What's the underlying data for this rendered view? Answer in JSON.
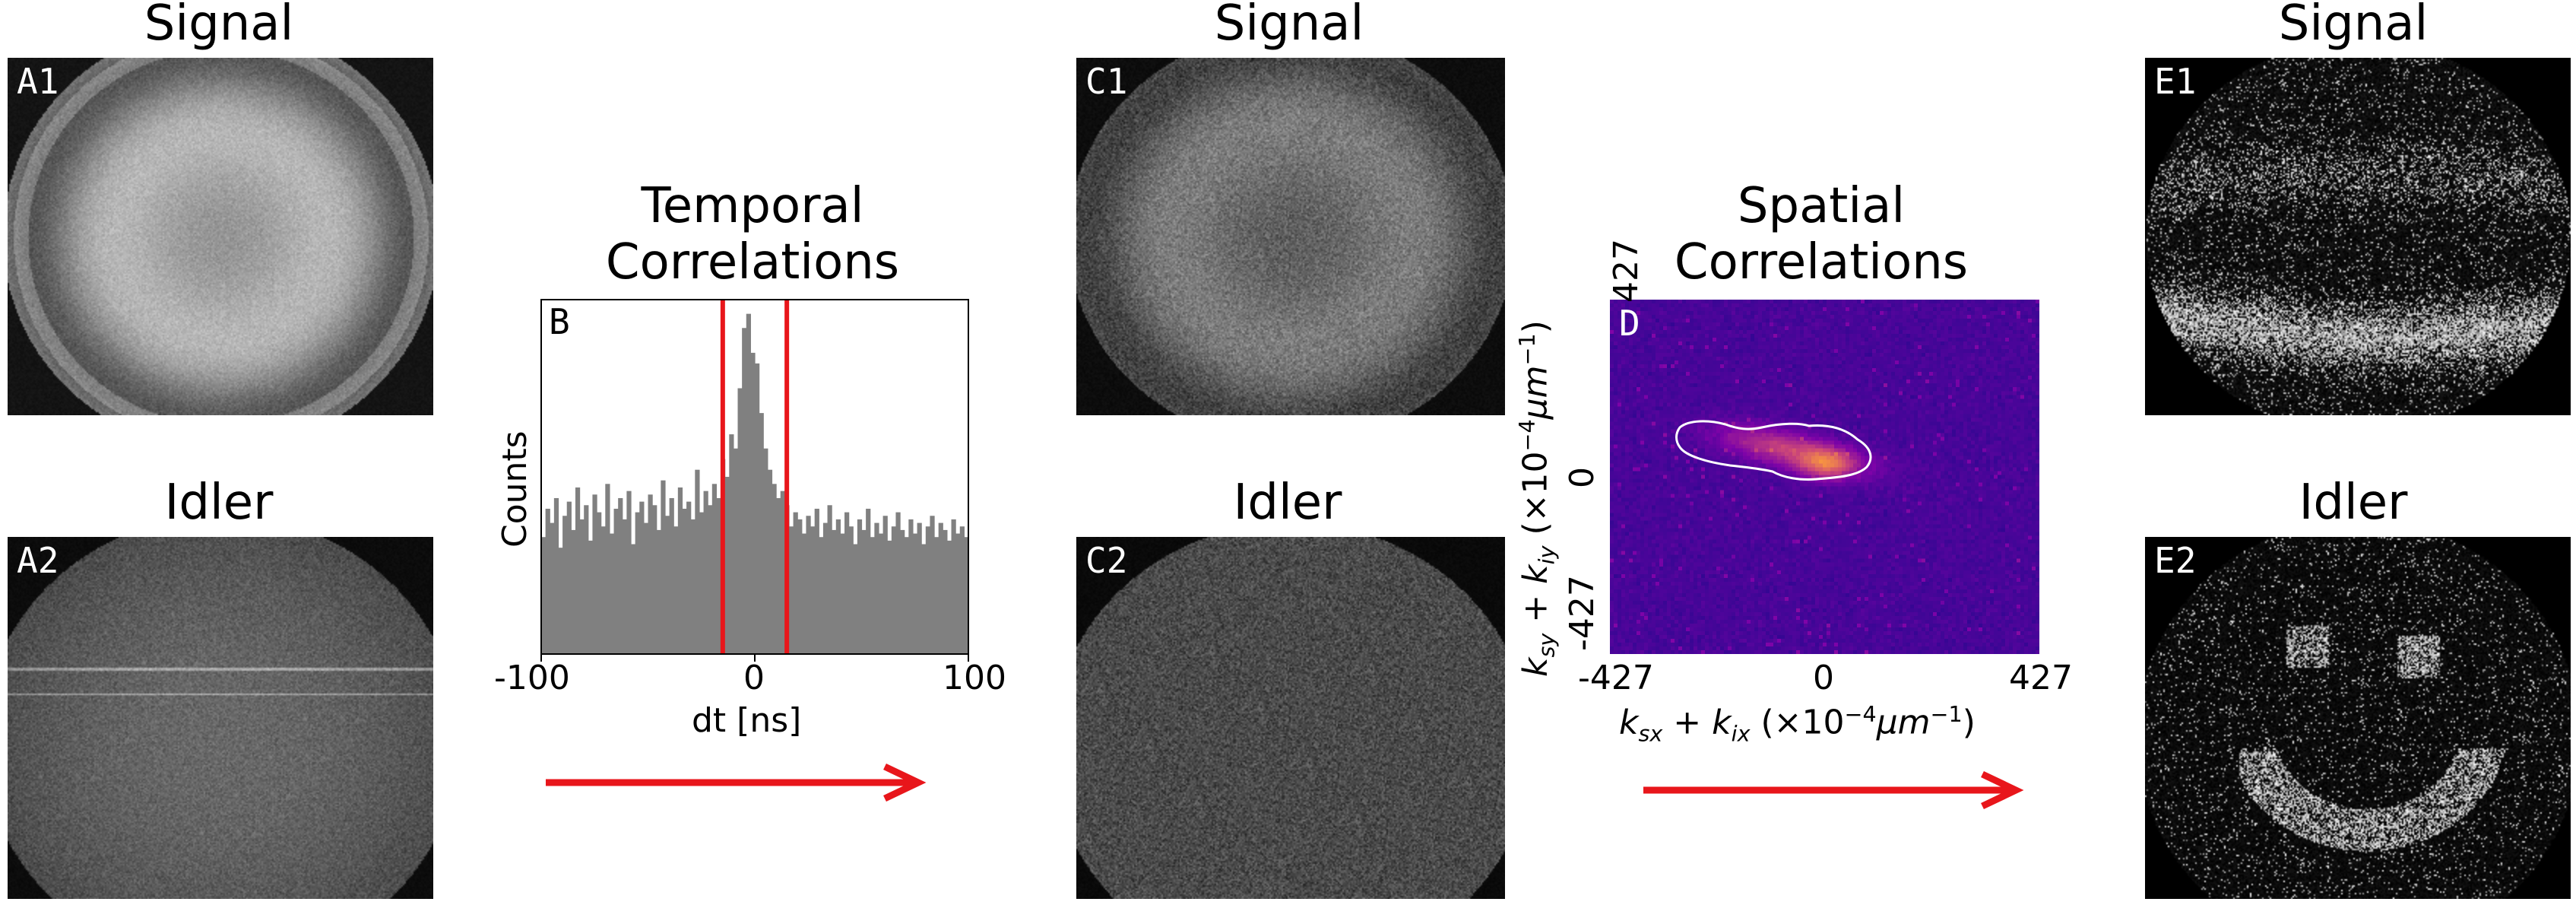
{
  "titles": {
    "a1": "Signal",
    "a2": "Idler",
    "b_line1": "Temporal",
    "b_line2": "Correlations",
    "c1": "Signal",
    "c2": "Idler",
    "d_line1": "Spatial",
    "d_line2": "Correlations",
    "e1": "Signal",
    "e2": "Idler"
  },
  "panel_labels": {
    "a1": "A1",
    "a2": "A2",
    "b": "B",
    "c1": "C1",
    "c2": "C2",
    "d": "D",
    "e1": "E1",
    "e2": "E2"
  },
  "histogram": {
    "ylabel": "Counts",
    "xlabel": "dt [ns]",
    "xticks": [
      "-100",
      "0",
      "100"
    ],
    "gate_lines_ns": [
      -15,
      15
    ],
    "bar_color": "#808080",
    "gate_color": "#e8161b"
  },
  "spatial": {
    "yticks": [
      "427",
      "0",
      "-427"
    ],
    "xticks": [
      "-427",
      "0",
      "427"
    ],
    "xlabel_text": "k_sx + k_ix (×10⁻⁴μm⁻¹)",
    "ylabel_text": "k_sy + k_iy (×10⁻⁴μm⁻¹)",
    "k_s": "k",
    "k_sub_sx": "sx",
    "plus": " + ",
    "k_sub_ix": "ix",
    "xunit_open": " (×10",
    "exp": "−4",
    "unit_mid": "μm",
    "unit_exp": "−1",
    "unit_close": ")",
    "k_sub_sy": "sy",
    "k_sub_iy": "iy",
    "colormap": "plasma"
  },
  "arrows": {
    "color": "#e8161b"
  },
  "chart_data": [
    {
      "type": "bar",
      "title": "Temporal Correlations",
      "xlabel": "dt [ns]",
      "ylabel": "Counts",
      "xlim": [
        -100,
        100
      ],
      "x_ticks": [
        -100,
        0,
        100
      ],
      "bin_width_ns": 2,
      "x": [
        -99,
        -97,
        -95,
        -93,
        -91,
        -89,
        -87,
        -85,
        -83,
        -81,
        -79,
        -77,
        -75,
        -73,
        -71,
        -69,
        -67,
        -65,
        -63,
        -61,
        -59,
        -57,
        -55,
        -53,
        -51,
        -49,
        -47,
        -45,
        -43,
        -41,
        -39,
        -37,
        -35,
        -33,
        -31,
        -29,
        -27,
        -25,
        -23,
        -21,
        -19,
        -17,
        -15,
        -13,
        -11,
        -9,
        -7,
        -5,
        -3,
        -1,
        1,
        3,
        5,
        7,
        9,
        11,
        13,
        15,
        17,
        19,
        21,
        23,
        25,
        27,
        29,
        31,
        33,
        35,
        37,
        39,
        41,
        43,
        45,
        47,
        49,
        51,
        53,
        55,
        57,
        59,
        61,
        63,
        65,
        67,
        69,
        71,
        73,
        75,
        77,
        79,
        81,
        83,
        85,
        87,
        89,
        91,
        93,
        95,
        97,
        99
      ],
      "values": [
        0.33,
        0.41,
        0.37,
        0.44,
        0.3,
        0.39,
        0.43,
        0.35,
        0.47,
        0.38,
        0.42,
        0.32,
        0.45,
        0.4,
        0.36,
        0.48,
        0.34,
        0.41,
        0.44,
        0.38,
        0.46,
        0.31,
        0.4,
        0.43,
        0.37,
        0.45,
        0.42,
        0.35,
        0.49,
        0.39,
        0.44,
        0.36,
        0.47,
        0.41,
        0.43,
        0.38,
        0.52,
        0.4,
        0.46,
        0.42,
        0.48,
        0.44,
        0.55,
        0.5,
        0.62,
        0.58,
        0.75,
        0.92,
        0.96,
        0.85,
        0.82,
        0.68,
        0.58,
        0.52,
        0.48,
        0.44,
        0.46,
        0.42,
        0.36,
        0.4,
        0.38,
        0.34,
        0.39,
        0.36,
        0.41,
        0.33,
        0.37,
        0.42,
        0.35,
        0.38,
        0.34,
        0.4,
        0.36,
        0.31,
        0.38,
        0.35,
        0.41,
        0.33,
        0.37,
        0.34,
        0.39,
        0.32,
        0.36,
        0.4,
        0.35,
        0.33,
        0.38,
        0.34,
        0.37,
        0.31,
        0.36,
        0.39,
        0.33,
        0.37,
        0.35,
        0.32,
        0.38,
        0.34,
        0.36,
        0.33
      ],
      "vertical_lines": [
        -15,
        15
      ]
    },
    {
      "type": "heatmap",
      "title": "Spatial Correlations",
      "xlabel": "k_sx + k_ix (×10⁻⁴μm⁻¹)",
      "ylabel": "k_sy + k_iy (×10⁻⁴μm⁻¹)",
      "xlim": [
        -427,
        427
      ],
      "ylim": [
        -427,
        427
      ],
      "x_ticks": [
        -427,
        0,
        427
      ],
      "y_ticks": [
        -427,
        0,
        427
      ],
      "colormap": "plasma",
      "peak": [
        0,
        0
      ],
      "contour_color": "#ffffff"
    }
  ]
}
